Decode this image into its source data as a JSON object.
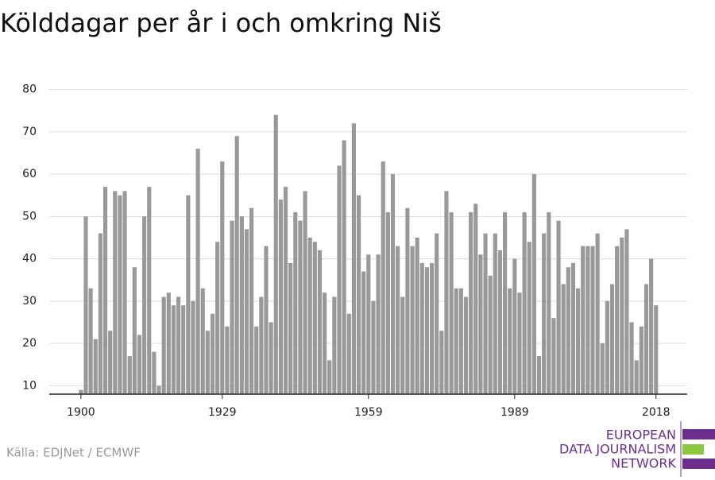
{
  "chart_data": {
    "type": "bar",
    "title": "Kölddagar per år i och omkring Niš",
    "source": "Källa: EDJNet / ECMWF",
    "logo": [
      "EUROPEAN",
      "DATA JOURNALISM",
      "NETWORK"
    ],
    "color": "#999999",
    "x": [
      1900,
      1901,
      1902,
      1903,
      1904,
      1905,
      1906,
      1907,
      1908,
      1909,
      1910,
      1911,
      1912,
      1913,
      1914,
      1915,
      1916,
      1917,
      1918,
      1919,
      1920,
      1921,
      1922,
      1923,
      1924,
      1925,
      1926,
      1927,
      1928,
      1929,
      1930,
      1931,
      1932,
      1933,
      1934,
      1935,
      1936,
      1937,
      1938,
      1939,
      1940,
      1941,
      1942,
      1943,
      1944,
      1945,
      1946,
      1947,
      1948,
      1949,
      1950,
      1951,
      1952,
      1953,
      1954,
      1955,
      1956,
      1957,
      1958,
      1959,
      1960,
      1961,
      1962,
      1963,
      1964,
      1965,
      1966,
      1967,
      1968,
      1969,
      1970,
      1971,
      1972,
      1973,
      1974,
      1975,
      1976,
      1977,
      1978,
      1979,
      1980,
      1981,
      1982,
      1983,
      1984,
      1985,
      1986,
      1987,
      1988,
      1989,
      1990,
      1991,
      1992,
      1993,
      1994,
      1995,
      1996,
      1997,
      1998,
      1999,
      2000,
      2001,
      2002,
      2003,
      2004,
      2005,
      2006,
      2007,
      2008,
      2009,
      2010,
      2011,
      2012,
      2013,
      2014,
      2015,
      2016,
      2017,
      2018
    ],
    "values": [
      9,
      50,
      33,
      21,
      46,
      57,
      23,
      56,
      55,
      56,
      17,
      38,
      22,
      50,
      57,
      18,
      10,
      31,
      32,
      29,
      31,
      29,
      55,
      30,
      66,
      33,
      23,
      27,
      44,
      63,
      24,
      49,
      69,
      50,
      47,
      52,
      24,
      31,
      43,
      25,
      74,
      54,
      57,
      39,
      51,
      49,
      56,
      45,
      44,
      42,
      32,
      16,
      31,
      62,
      68,
      27,
      72,
      55,
      37,
      41,
      30,
      41,
      63,
      51,
      60,
      43,
      31,
      52,
      43,
      45,
      39,
      38,
      39,
      46,
      23,
      56,
      51,
      33,
      33,
      31,
      51,
      53,
      41,
      46,
      36,
      46,
      42,
      51,
      33,
      40,
      32,
      51,
      44,
      60,
      17,
      46,
      51,
      26,
      49,
      34,
      38,
      39,
      33,
      43,
      43,
      43,
      46,
      20,
      30,
      34,
      43,
      45,
      47,
      25,
      16,
      24,
      34,
      40,
      29
    ],
    "xlim": [
      1893.5,
      2024.4
    ],
    "xticks": [
      1900,
      1929,
      1959,
      1989,
      2018
    ],
    "ylim": [
      8,
      82
    ],
    "yticks": [
      10,
      20,
      30,
      40,
      50,
      60,
      70,
      80
    ],
    "grid": true
  }
}
